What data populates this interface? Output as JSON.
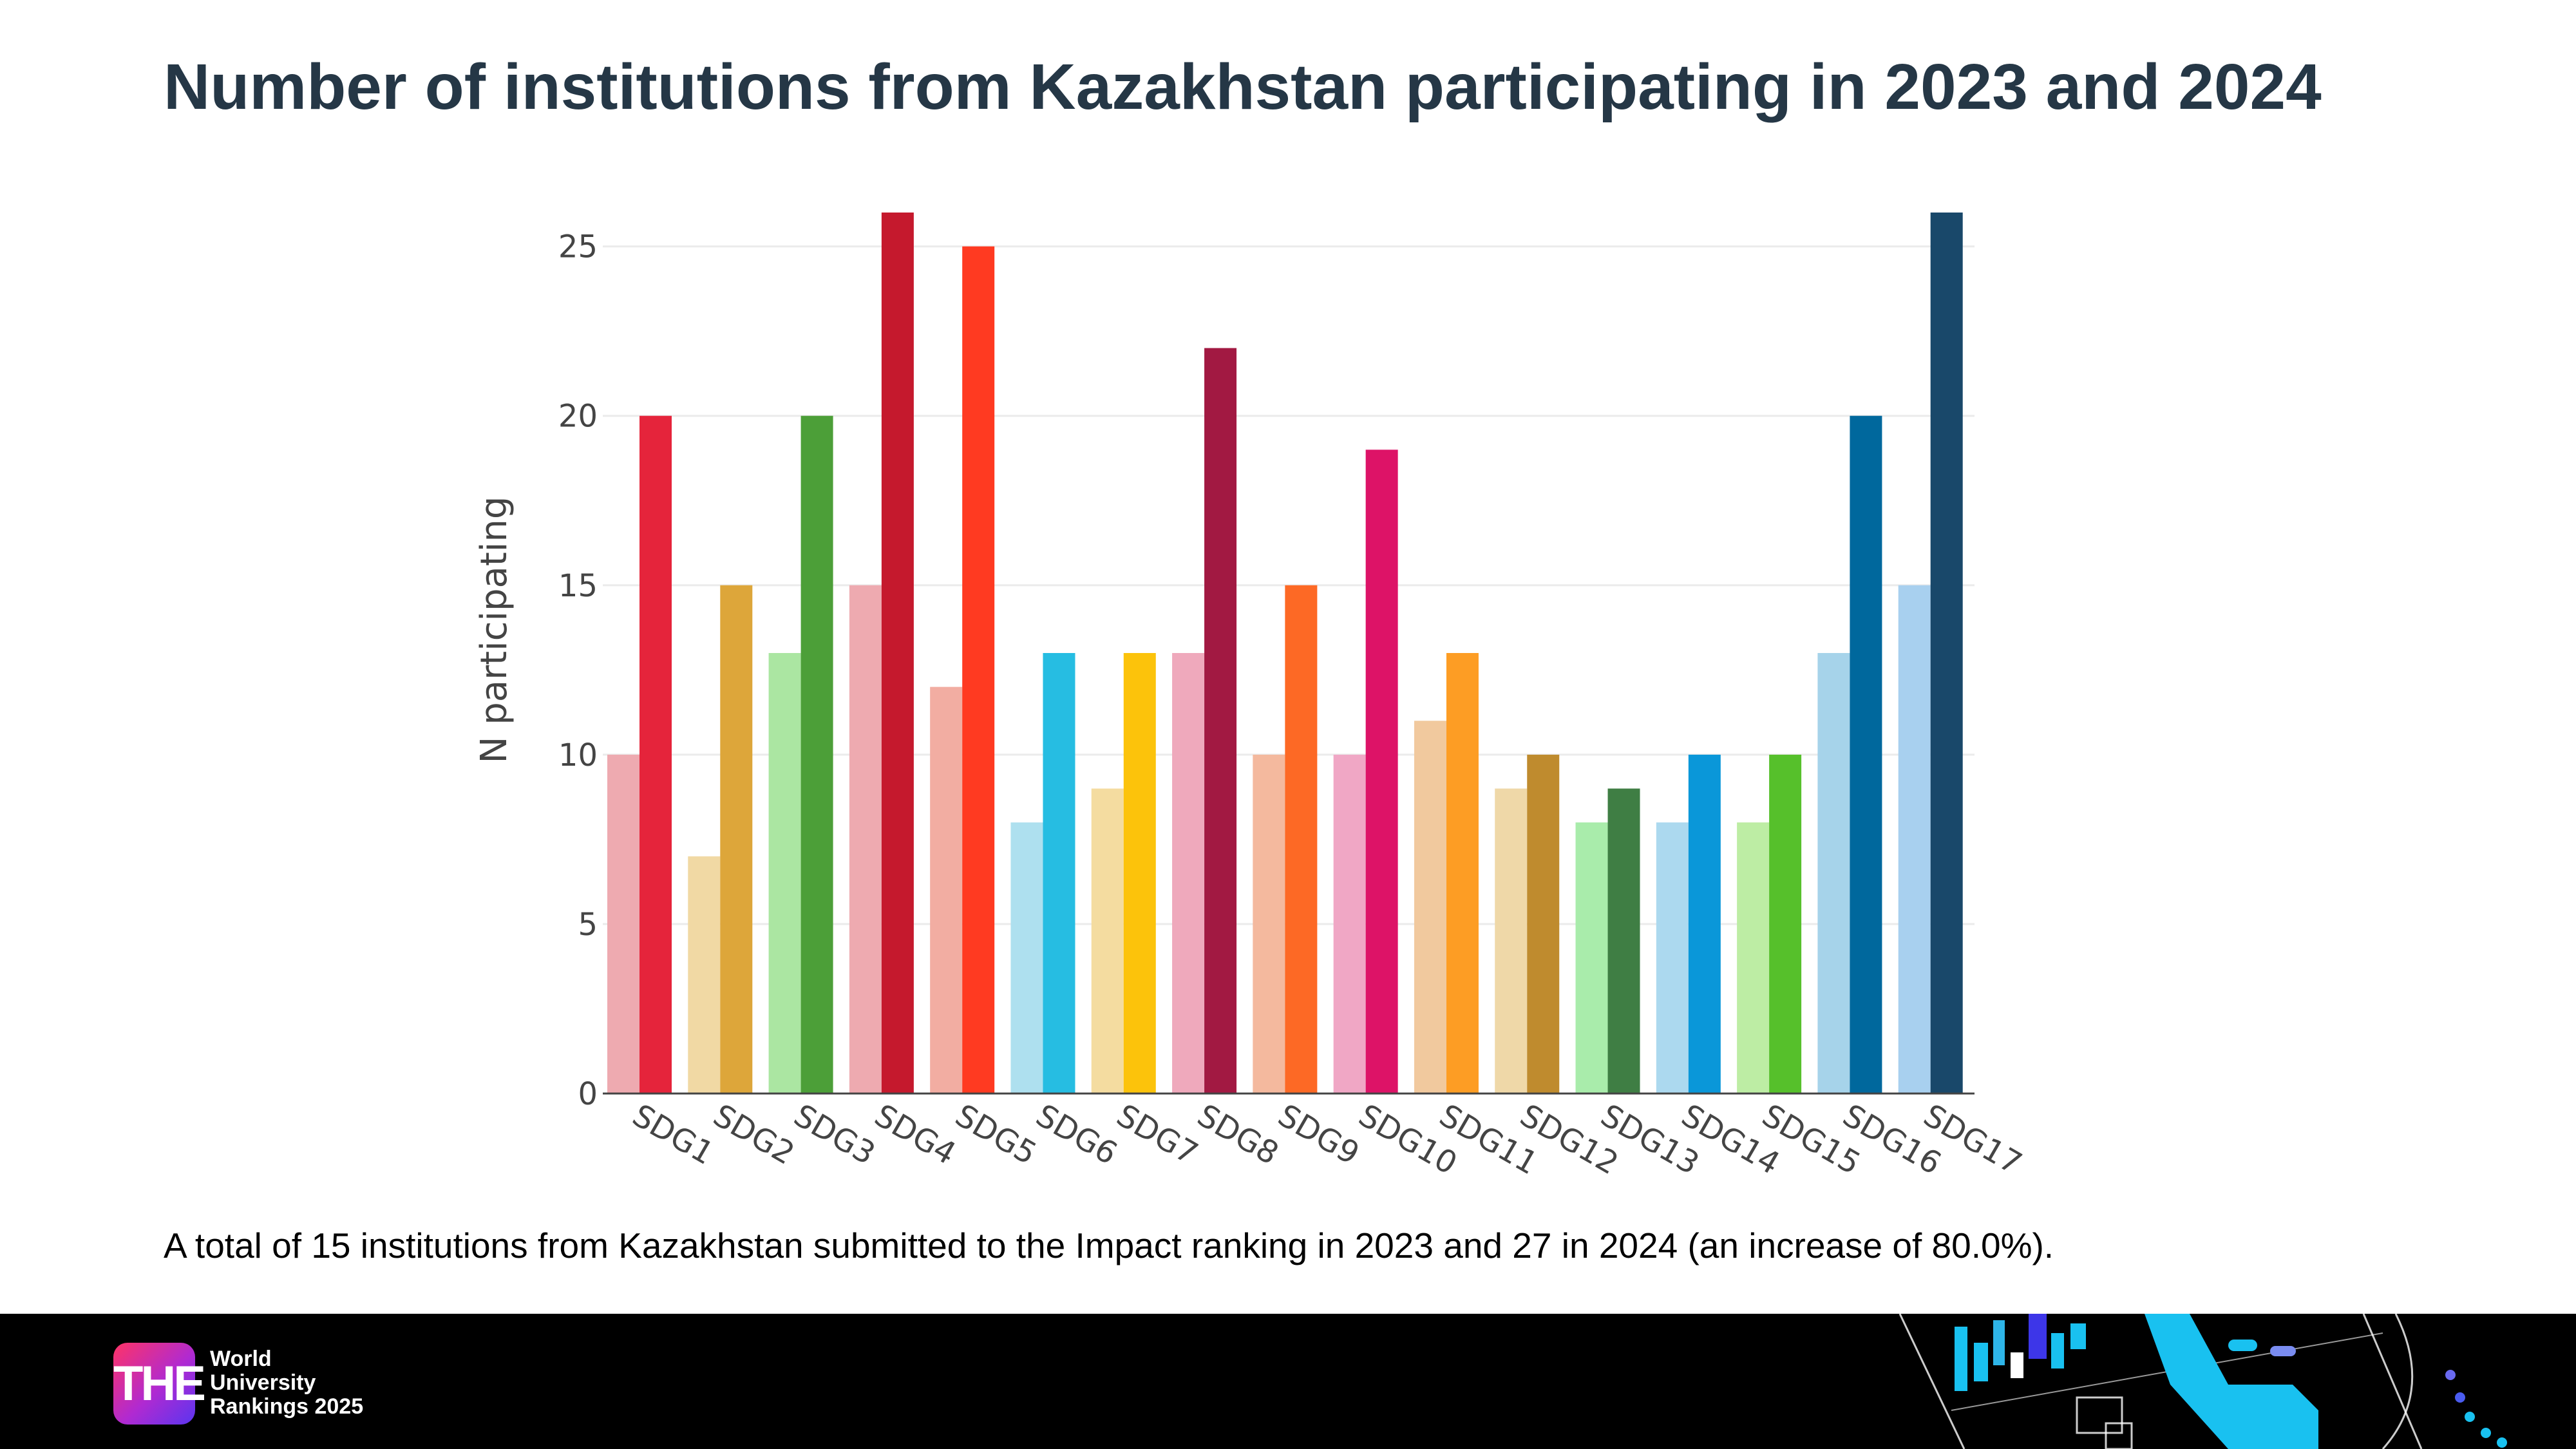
{
  "page": {
    "title": "Number of institutions from Kazakhstan participating in 2023 and 2024",
    "summary": "A total of 15 institutions from Kazakhstan submitted to the Impact ranking in 2023 and 27 in 2024 (an increase of 80.0%)."
  },
  "footer": {
    "logo_mark": "THE",
    "logo_lines": [
      "World",
      "University",
      "Rankings 2025"
    ]
  },
  "chart_data": {
    "type": "bar",
    "title": "",
    "xlabel": "",
    "ylabel": "N participating",
    "ylim": [
      0,
      26
    ],
    "yticks": [
      0,
      5,
      10,
      15,
      20,
      25
    ],
    "grid": true,
    "categories": [
      "SDG1",
      "SDG2",
      "SDG3",
      "SDG4",
      "SDG5",
      "SDG6",
      "SDG7",
      "SDG8",
      "SDG9",
      "SDG10",
      "SDG11",
      "SDG12",
      "SDG13",
      "SDG14",
      "SDG15",
      "SDG16",
      "SDG17"
    ],
    "series": [
      {
        "name": "2023",
        "values": [
          10,
          7,
          13,
          15,
          12,
          8,
          9,
          13,
          10,
          10,
          11,
          9,
          8,
          8,
          8,
          13,
          15
        ],
        "colors": [
          "#eeaab0",
          "#f1d9a4",
          "#abe6a2",
          "#eeaab0",
          "#f2ada2",
          "#aee0ef",
          "#f4dca0",
          "#efa9bc",
          "#f4b99e",
          "#f0a7c5",
          "#f1c99e",
          "#efd8a8",
          "#a9ecab",
          "#acd9ef",
          "#bdeda4",
          "#a6d3ea",
          "#a8d0ef"
        ]
      },
      {
        "name": "2024",
        "values": [
          20,
          15,
          20,
          26,
          25,
          13,
          13,
          22,
          15,
          19,
          13,
          10,
          9,
          10,
          10,
          20,
          26
        ],
        "colors": [
          "#e5243b",
          "#dda63a",
          "#4c9f38",
          "#c5192d",
          "#ff3a21",
          "#26bde2",
          "#fcc30b",
          "#a21942",
          "#fd6925",
          "#dd1367",
          "#fd9d24",
          "#bf8b2e",
          "#3f7e44",
          "#0a97d9",
          "#56c02b",
          "#00689d",
          "#19486a"
        ]
      }
    ]
  }
}
